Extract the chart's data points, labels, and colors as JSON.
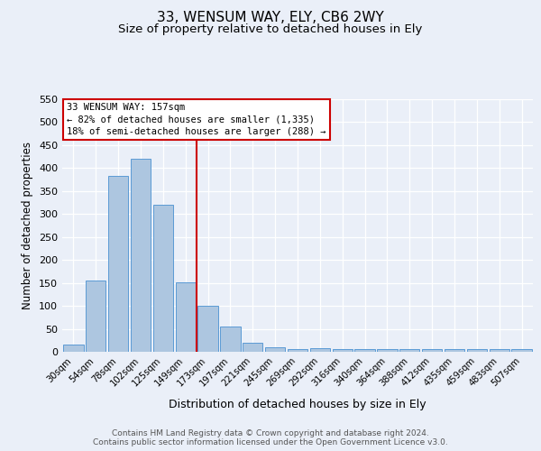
{
  "title": "33, WENSUM WAY, ELY, CB6 2WY",
  "subtitle": "Size of property relative to detached houses in Ely",
  "xlabel": "Distribution of detached houses by size in Ely",
  "ylabel": "Number of detached properties",
  "bar_labels": [
    "30sqm",
    "54sqm",
    "78sqm",
    "102sqm",
    "125sqm",
    "149sqm",
    "173sqm",
    "197sqm",
    "221sqm",
    "245sqm",
    "269sqm",
    "292sqm",
    "316sqm",
    "340sqm",
    "364sqm",
    "388sqm",
    "412sqm",
    "435sqm",
    "459sqm",
    "483sqm",
    "507sqm"
  ],
  "bar_values": [
    15,
    155,
    383,
    420,
    320,
    152,
    100,
    55,
    20,
    10,
    5,
    7,
    5,
    5,
    5,
    5,
    5,
    5,
    5,
    5,
    5
  ],
  "bar_color": "#adc6e0",
  "bar_edge_color": "#5b9bd5",
  "background_color": "#eaeff8",
  "grid_color": "#ffffff",
  "red_line_x": 5.5,
  "annotation_text": "33 WENSUM WAY: 157sqm\n← 82% of detached houses are smaller (1,335)\n18% of semi-detached houses are larger (288) →",
  "annotation_box_color": "#ffffff",
  "annotation_box_edge": "#cc0000",
  "ylim": [
    0,
    550
  ],
  "yticks": [
    0,
    50,
    100,
    150,
    200,
    250,
    300,
    350,
    400,
    450,
    500,
    550
  ],
  "title_fontsize": 11,
  "subtitle_fontsize": 9.5,
  "footer_line1": "Contains HM Land Registry data © Crown copyright and database right 2024.",
  "footer_line2": "Contains public sector information licensed under the Open Government Licence v3.0."
}
